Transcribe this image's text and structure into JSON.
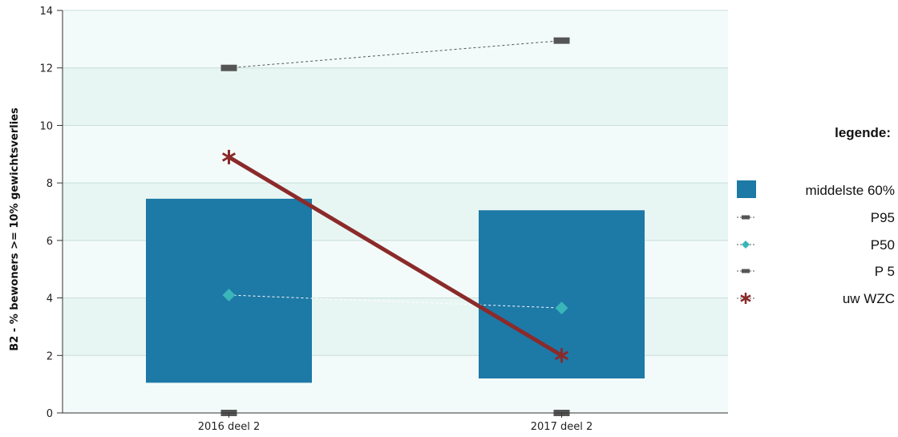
{
  "chart_data": {
    "type": "bar",
    "categories": [
      "2016 deel 2",
      "2017 deel 2"
    ],
    "ylabel": "B2 - % bewoners >= 10% gewichtsverlies",
    "ylim": [
      0,
      14
    ],
    "yticks": [
      0,
      2,
      4,
      6,
      8,
      10,
      12,
      14
    ],
    "grid": true,
    "legend_position": "right",
    "legend_title": "legende:",
    "band": {
      "name": "middelste 60%",
      "low": [
        1.05,
        1.2
      ],
      "high": [
        7.45,
        7.05
      ],
      "color": "#1d79a6"
    },
    "series": [
      {
        "name": "P95",
        "values": [
          12.0,
          12.95
        ],
        "marker": "dash",
        "color": "#555555"
      },
      {
        "name": "P50",
        "values": [
          4.1,
          3.65
        ],
        "marker": "diamond",
        "color": "#3ab5b8"
      },
      {
        "name": "P 5",
        "values": [
          0.0,
          0.0
        ],
        "marker": "dash",
        "color": "#555555"
      },
      {
        "name": "uw WZC",
        "values": [
          8.9,
          2.0
        ],
        "marker": "star",
        "color": "#8b2a2a"
      }
    ]
  }
}
